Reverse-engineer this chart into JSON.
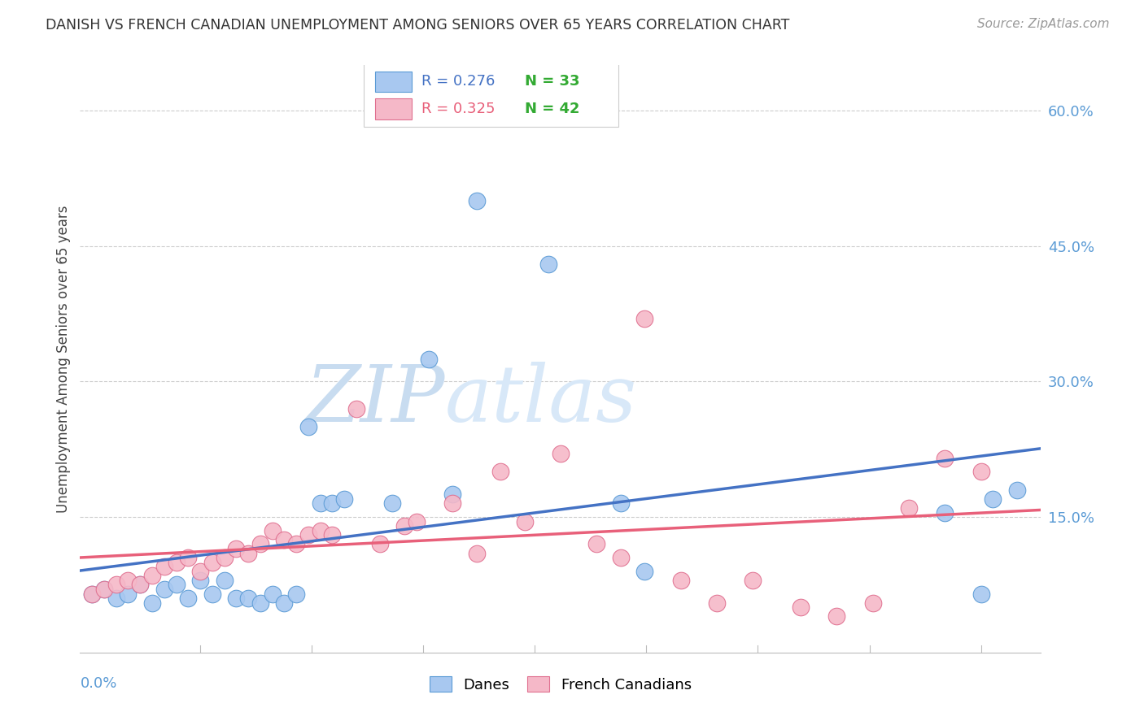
{
  "title": "DANISH VS FRENCH CANADIAN UNEMPLOYMENT AMONG SENIORS OVER 65 YEARS CORRELATION CHART",
  "source": "Source: ZipAtlas.com",
  "ylabel": "Unemployment Among Seniors over 65 years",
  "x_min": 0.0,
  "x_max": 0.4,
  "y_min": 0.0,
  "y_max": 0.65,
  "y_ticks": [
    0.15,
    0.3,
    0.45,
    0.6
  ],
  "y_tick_labels": [
    "15.0%",
    "30.0%",
    "45.0%",
    "60.0%"
  ],
  "legend_danes_r": "R = 0.276",
  "legend_danes_n": "N = 33",
  "legend_fc_r": "R = 0.325",
  "legend_fc_n": "N = 42",
  "blue_scatter": "#A8C8F0",
  "pink_scatter": "#F5B8C8",
  "blue_line": "#4472C4",
  "pink_line": "#E8607A",
  "blue_edge": "#5B9BD5",
  "pink_edge": "#E07090",
  "tick_color": "#5B9BD5",
  "watermark_zip_color": "#C8DCF0",
  "watermark_atlas_color": "#D8E8F8",
  "background": "#FFFFFF",
  "label_green": "#33AA33",
  "danes_x": [
    0.005,
    0.01,
    0.015,
    0.02,
    0.025,
    0.03,
    0.035,
    0.04,
    0.045,
    0.05,
    0.055,
    0.06,
    0.065,
    0.07,
    0.075,
    0.08,
    0.085,
    0.09,
    0.095,
    0.1,
    0.105,
    0.11,
    0.13,
    0.145,
    0.155,
    0.165,
    0.195,
    0.225,
    0.235,
    0.36,
    0.375,
    0.38,
    0.39
  ],
  "danes_y": [
    0.065,
    0.07,
    0.06,
    0.065,
    0.075,
    0.055,
    0.07,
    0.075,
    0.06,
    0.08,
    0.065,
    0.08,
    0.06,
    0.06,
    0.055,
    0.065,
    0.055,
    0.065,
    0.25,
    0.165,
    0.165,
    0.17,
    0.165,
    0.325,
    0.175,
    0.5,
    0.43,
    0.165,
    0.09,
    0.155,
    0.065,
    0.17,
    0.18
  ],
  "fc_x": [
    0.005,
    0.01,
    0.015,
    0.02,
    0.025,
    0.03,
    0.035,
    0.04,
    0.045,
    0.05,
    0.055,
    0.06,
    0.065,
    0.07,
    0.075,
    0.08,
    0.085,
    0.09,
    0.095,
    0.1,
    0.105,
    0.115,
    0.125,
    0.135,
    0.14,
    0.155,
    0.165,
    0.175,
    0.185,
    0.2,
    0.215,
    0.225,
    0.235,
    0.25,
    0.265,
    0.28,
    0.3,
    0.315,
    0.33,
    0.345,
    0.36,
    0.375
  ],
  "fc_y": [
    0.065,
    0.07,
    0.075,
    0.08,
    0.075,
    0.085,
    0.095,
    0.1,
    0.105,
    0.09,
    0.1,
    0.105,
    0.115,
    0.11,
    0.12,
    0.135,
    0.125,
    0.12,
    0.13,
    0.135,
    0.13,
    0.27,
    0.12,
    0.14,
    0.145,
    0.165,
    0.11,
    0.2,
    0.145,
    0.22,
    0.12,
    0.105,
    0.37,
    0.08,
    0.055,
    0.08,
    0.05,
    0.04,
    0.055,
    0.16,
    0.215,
    0.2
  ]
}
